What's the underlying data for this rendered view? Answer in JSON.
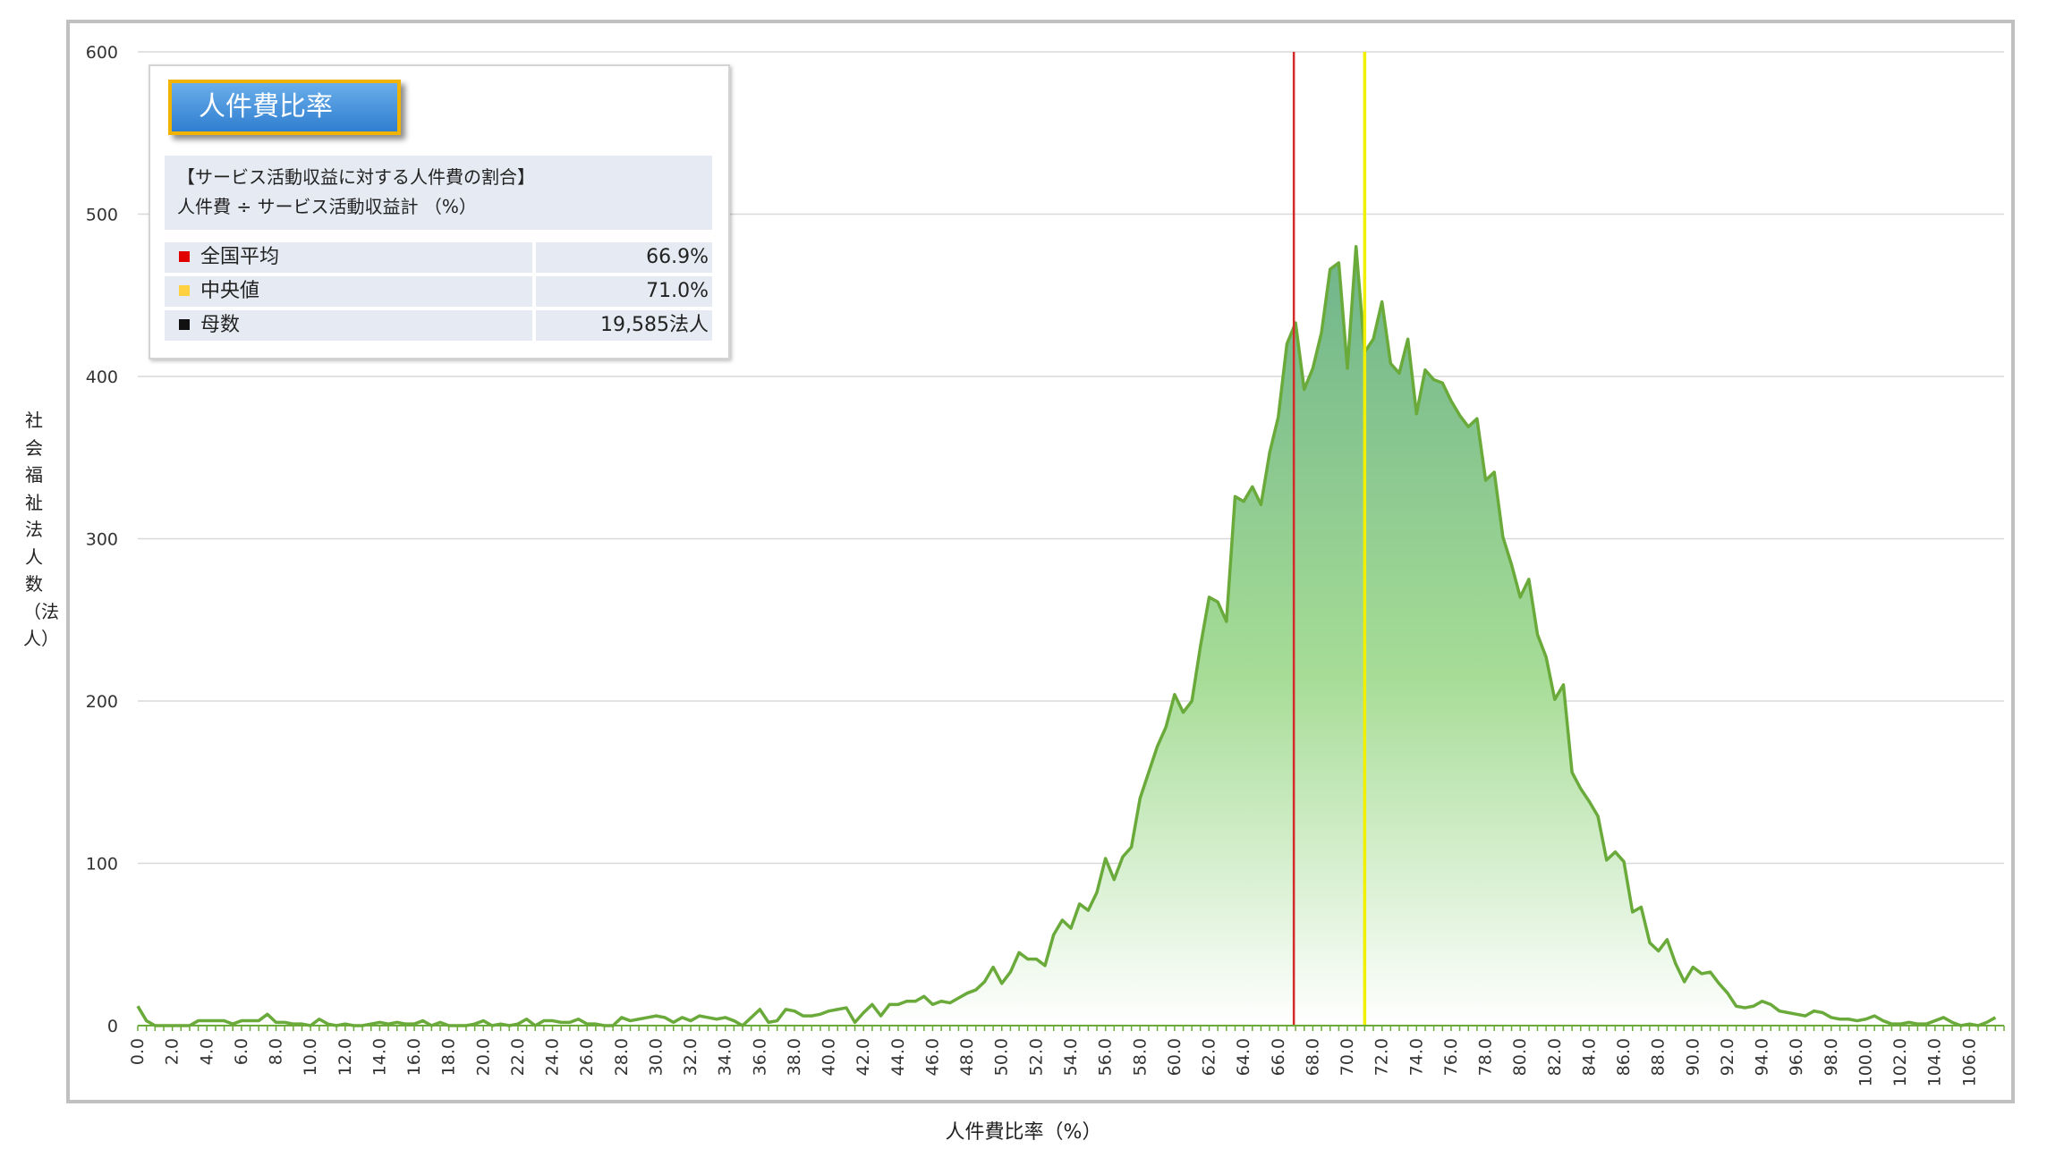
{
  "chart_data": {
    "type": "area",
    "ylabel": "社会福祉法人数（法人）",
    "xlabel": "人件費比率（%）",
    "ylim": [
      0,
      600
    ],
    "yticks": [
      0,
      100,
      200,
      300,
      400,
      500,
      600
    ],
    "xlim": [
      0,
      108
    ],
    "xticks": [
      0,
      2,
      4,
      6,
      8,
      10,
      12,
      14,
      16,
      18,
      20,
      22,
      24,
      26,
      28,
      30,
      32,
      34,
      36,
      38,
      40,
      42,
      44,
      46,
      48,
      50,
      52,
      54,
      56,
      58,
      60,
      62,
      64,
      66,
      68,
      70,
      72,
      74,
      76,
      78,
      80,
      82,
      84,
      86,
      88,
      90,
      92,
      94,
      96,
      98,
      100,
      102,
      104,
      106
    ],
    "grid": true,
    "legend_placement": "top-left",
    "colors": {
      "line": "#6aaa3a",
      "fill_top": "#6fb48a",
      "fill_mid": "#a6dc96",
      "mean_line": "#d42a2a",
      "median_line": "#f0f000"
    },
    "reference_lines": [
      {
        "x": 66.9,
        "label": "全国平均",
        "color": "#d42a2a"
      },
      {
        "x": 71.0,
        "label": "中央値",
        "color": "#f0f000"
      }
    ],
    "series": [
      {
        "points": [
          [
            0,
            12
          ],
          [
            0.5,
            3
          ],
          [
            1,
            0
          ],
          [
            1.5,
            0
          ],
          [
            2,
            0
          ],
          [
            2.5,
            0
          ],
          [
            3,
            0
          ],
          [
            3.5,
            3
          ],
          [
            4,
            3
          ],
          [
            4.5,
            3
          ],
          [
            5,
            3
          ],
          [
            5.5,
            1
          ],
          [
            6,
            3
          ],
          [
            6.5,
            3
          ],
          [
            7,
            3
          ],
          [
            7.5,
            7
          ],
          [
            8,
            2
          ],
          [
            8.5,
            2
          ],
          [
            9,
            1
          ],
          [
            9.5,
            1
          ],
          [
            10,
            0
          ],
          [
            10.5,
            4
          ],
          [
            11,
            1
          ],
          [
            11.5,
            0
          ],
          [
            12,
            1
          ],
          [
            12.5,
            0
          ],
          [
            13,
            0
          ],
          [
            13.5,
            1
          ],
          [
            14,
            2
          ],
          [
            14.5,
            1
          ],
          [
            15,
            2
          ],
          [
            15.5,
            1
          ],
          [
            16,
            1
          ],
          [
            16.5,
            3
          ],
          [
            17,
            0
          ],
          [
            17.5,
            2
          ],
          [
            18,
            0
          ],
          [
            18.5,
            0
          ],
          [
            19,
            0
          ],
          [
            19.5,
            1
          ],
          [
            20,
            3
          ],
          [
            20.5,
            0
          ],
          [
            21,
            1
          ],
          [
            21.5,
            0
          ],
          [
            22,
            1
          ],
          [
            22.5,
            4
          ],
          [
            23,
            0
          ],
          [
            23.5,
            3
          ],
          [
            24,
            3
          ],
          [
            24.5,
            2
          ],
          [
            25,
            2
          ],
          [
            25.5,
            4
          ],
          [
            26,
            1
          ],
          [
            26.5,
            1
          ],
          [
            27,
            0
          ],
          [
            27.5,
            0
          ],
          [
            28,
            5
          ],
          [
            28.5,
            3
          ],
          [
            29,
            4
          ],
          [
            29.5,
            5
          ],
          [
            30,
            6
          ],
          [
            30.5,
            5
          ],
          [
            31,
            2
          ],
          [
            31.5,
            5
          ],
          [
            32,
            3
          ],
          [
            32.5,
            6
          ],
          [
            33,
            5
          ],
          [
            33.5,
            4
          ],
          [
            34,
            5
          ],
          [
            34.5,
            3
          ],
          [
            35,
            0
          ],
          [
            35.5,
            5
          ],
          [
            36,
            10
          ],
          [
            36.5,
            2
          ],
          [
            37,
            3
          ],
          [
            37.5,
            10
          ],
          [
            38,
            9
          ],
          [
            38.5,
            6
          ],
          [
            39,
            6
          ],
          [
            39.5,
            7
          ],
          [
            40,
            9
          ],
          [
            40.5,
            10
          ],
          [
            41,
            11
          ],
          [
            41.5,
            2
          ],
          [
            42,
            8
          ],
          [
            42.5,
            13
          ],
          [
            43,
            6
          ],
          [
            43.5,
            13
          ],
          [
            44,
            13
          ],
          [
            44.5,
            15
          ],
          [
            45,
            15
          ],
          [
            45.5,
            18
          ],
          [
            46,
            13
          ],
          [
            46.5,
            15
          ],
          [
            47,
            14
          ],
          [
            47.5,
            17
          ],
          [
            48,
            20
          ],
          [
            48.5,
            22
          ],
          [
            49,
            27
          ],
          [
            49.5,
            36
          ],
          [
            50,
            26
          ],
          [
            50.5,
            33
          ],
          [
            51,
            45
          ],
          [
            51.5,
            41
          ],
          [
            52,
            41
          ],
          [
            52.5,
            37
          ],
          [
            53,
            56
          ],
          [
            53.5,
            65
          ],
          [
            54,
            60
          ],
          [
            54.5,
            75
          ],
          [
            55,
            71
          ],
          [
            55.5,
            82
          ],
          [
            56,
            103
          ],
          [
            56.5,
            90
          ],
          [
            57,
            104
          ],
          [
            57.5,
            110
          ],
          [
            58,
            140
          ],
          [
            58.5,
            156
          ],
          [
            59,
            172
          ],
          [
            59.5,
            184
          ],
          [
            60,
            204
          ],
          [
            60.5,
            193
          ],
          [
            61,
            200
          ],
          [
            61.5,
            234
          ],
          [
            62,
            264
          ],
          [
            62.5,
            261
          ],
          [
            63,
            249
          ],
          [
            63.5,
            326
          ],
          [
            64,
            323
          ],
          [
            64.5,
            332
          ],
          [
            65,
            321
          ],
          [
            65.5,
            353
          ],
          [
            66,
            375
          ],
          [
            66.5,
            420
          ],
          [
            67,
            433
          ],
          [
            67.5,
            392
          ],
          [
            68,
            405
          ],
          [
            68.5,
            427
          ],
          [
            69,
            466
          ],
          [
            69.5,
            470
          ],
          [
            70,
            405
          ],
          [
            70.5,
            480
          ],
          [
            71,
            415
          ],
          [
            71.5,
            423
          ],
          [
            72,
            446
          ],
          [
            72.5,
            408
          ],
          [
            73,
            402
          ],
          [
            73.5,
            423
          ],
          [
            74,
            377
          ],
          [
            74.5,
            404
          ],
          [
            75,
            398
          ],
          [
            75.5,
            396
          ],
          [
            76,
            385
          ],
          [
            76.5,
            376
          ],
          [
            77,
            369
          ],
          [
            77.5,
            374
          ],
          [
            78,
            336
          ],
          [
            78.5,
            341
          ],
          [
            79,
            301
          ],
          [
            79.5,
            284
          ],
          [
            80,
            264
          ],
          [
            80.5,
            275
          ],
          [
            81,
            241
          ],
          [
            81.5,
            227
          ],
          [
            82,
            201
          ],
          [
            82.5,
            210
          ],
          [
            83,
            156
          ],
          [
            83.5,
            146
          ],
          [
            84,
            138
          ],
          [
            84.5,
            129
          ],
          [
            85,
            102
          ],
          [
            85.5,
            107
          ],
          [
            86,
            101
          ],
          [
            86.5,
            70
          ],
          [
            87,
            73
          ],
          [
            87.5,
            51
          ],
          [
            88,
            46
          ],
          [
            88.5,
            53
          ],
          [
            89,
            38
          ],
          [
            89.5,
            27
          ],
          [
            90,
            36
          ],
          [
            90.5,
            32
          ],
          [
            91,
            33
          ],
          [
            91.5,
            26
          ],
          [
            92,
            20
          ],
          [
            92.5,
            12
          ],
          [
            93,
            11
          ],
          [
            93.5,
            12
          ],
          [
            94,
            15
          ],
          [
            94.5,
            13
          ],
          [
            95,
            9
          ],
          [
            95.5,
            8
          ],
          [
            96,
            7
          ],
          [
            96.5,
            6
          ],
          [
            97,
            9
          ],
          [
            97.5,
            8
          ],
          [
            98,
            5
          ],
          [
            98.5,
            4
          ],
          [
            99,
            4
          ],
          [
            99.5,
            3
          ],
          [
            100,
            4
          ],
          [
            100.5,
            6
          ],
          [
            101,
            3
          ],
          [
            101.5,
            1
          ],
          [
            102,
            1
          ],
          [
            102.5,
            2
          ],
          [
            103,
            1
          ],
          [
            103.5,
            1
          ],
          [
            104,
            3
          ],
          [
            104.5,
            5
          ],
          [
            105,
            2
          ],
          [
            105.5,
            0
          ],
          [
            106,
            1
          ],
          [
            106.5,
            0
          ],
          [
            107,
            2
          ],
          [
            107.5,
            5
          ]
        ]
      }
    ]
  },
  "legend": {
    "title": "人件費比率",
    "desc_line1": "【サービス活動収益に対する人件費の割合】",
    "desc_line2": "人件費 ÷ サービス活動収益計 （%）",
    "rows": [
      {
        "label": "全国平均",
        "value": "66.9%",
        "color": "#e00000"
      },
      {
        "label": "中央値",
        "value": "71.0%",
        "color": "#ffd040"
      },
      {
        "label": "母数",
        "value": "19,585法人",
        "color": "#111111"
      }
    ]
  }
}
